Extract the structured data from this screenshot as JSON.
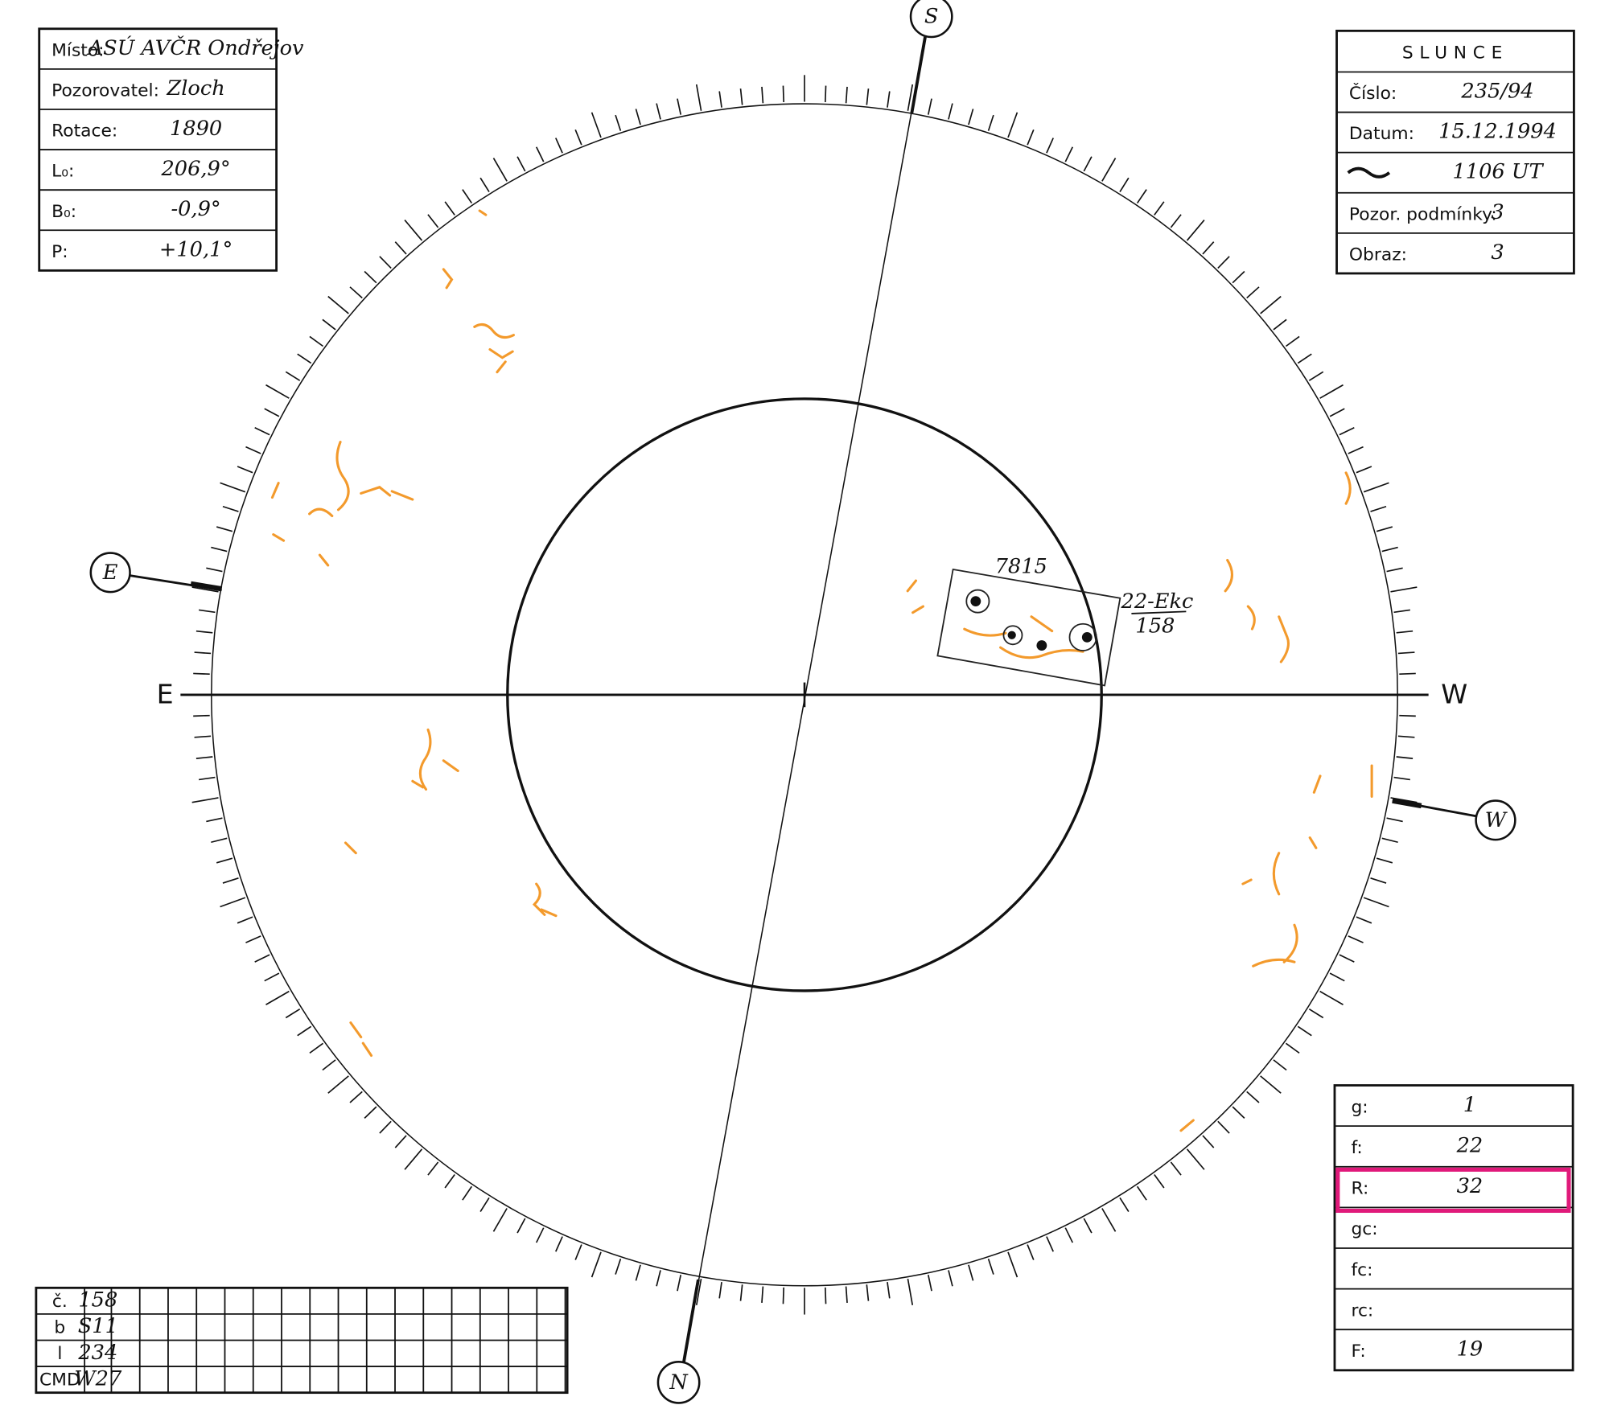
{
  "observer_form": {
    "site_table": {
      "rows": [
        {
          "label": "Místo:",
          "value": "ASÚ AVČR Ondřejov"
        },
        {
          "label": "Pozorovatel:",
          "value": "Zloch"
        },
        {
          "label": "Rotace:",
          "value": "1890"
        },
        {
          "label": "L₀:",
          "value": "206,9°"
        },
        {
          "label": "B₀:",
          "value": "-0,9°"
        },
        {
          "label": "P:",
          "value": "+10,1°"
        }
      ]
    },
    "sun_table": {
      "title": "SLUNCE",
      "rows": [
        {
          "label": "Číslo:",
          "value": "235/94"
        },
        {
          "label": "Datum:",
          "value": "15.12.1994"
        },
        {
          "value": "1106 UT"
        },
        {
          "label": "Pozor. podmínky:",
          "value": "3"
        },
        {
          "label": "Obraz:",
          "value": "3"
        }
      ]
    },
    "counts_table": {
      "rows": [
        {
          "label": "g:",
          "value": "1"
        },
        {
          "label": "f:",
          "value": "22"
        },
        {
          "label": "R:",
          "value": "32"
        },
        {
          "label": "gc:"
        },
        {
          "label": "fc:"
        },
        {
          "label": "rc:"
        },
        {
          "label": "F:",
          "value": "19"
        }
      ]
    },
    "group_table": {
      "rows": [
        {
          "label": "č.",
          "value": "158"
        },
        {
          "label": "b",
          "value": "S11"
        },
        {
          "label": "l",
          "value": "234"
        },
        {
          "label": "CMD",
          "value": "W27"
        }
      ]
    }
  },
  "drawing": {
    "directions": {
      "south": "S",
      "north": "N",
      "east": "E",
      "west": "W",
      "east_circled": "E",
      "west_circled": "W"
    },
    "annotations": {
      "active_region": "7815",
      "classification": "22-Ekc",
      "group_number": "158"
    }
  }
}
